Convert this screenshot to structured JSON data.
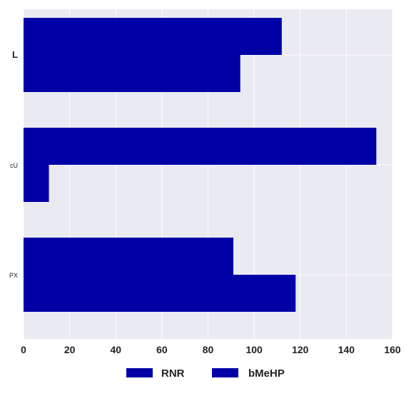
{
  "chart_data": {
    "type": "bar",
    "orientation": "horizontal",
    "categories": [
      "L",
      "cU",
      "PX"
    ],
    "series": [
      {
        "name": "RNR",
        "values": [
          112,
          153,
          91
        ],
        "color": "#0000a6"
      },
      {
        "name": "bMeHP",
        "values": [
          94,
          11,
          118
        ],
        "color": "#0000a6"
      }
    ],
    "xlim": [
      0,
      160
    ],
    "xticks": [
      "0",
      "20",
      "40",
      "60",
      "80",
      "100",
      "120",
      "140",
      "160"
    ],
    "grid": true,
    "legend_position": "bottom-center",
    "title": "",
    "xlabel": "",
    "ylabel": ""
  },
  "colors": {
    "plot_background": "#eaeaf2",
    "grid": "#ffffff",
    "bar": "#0000a6"
  }
}
